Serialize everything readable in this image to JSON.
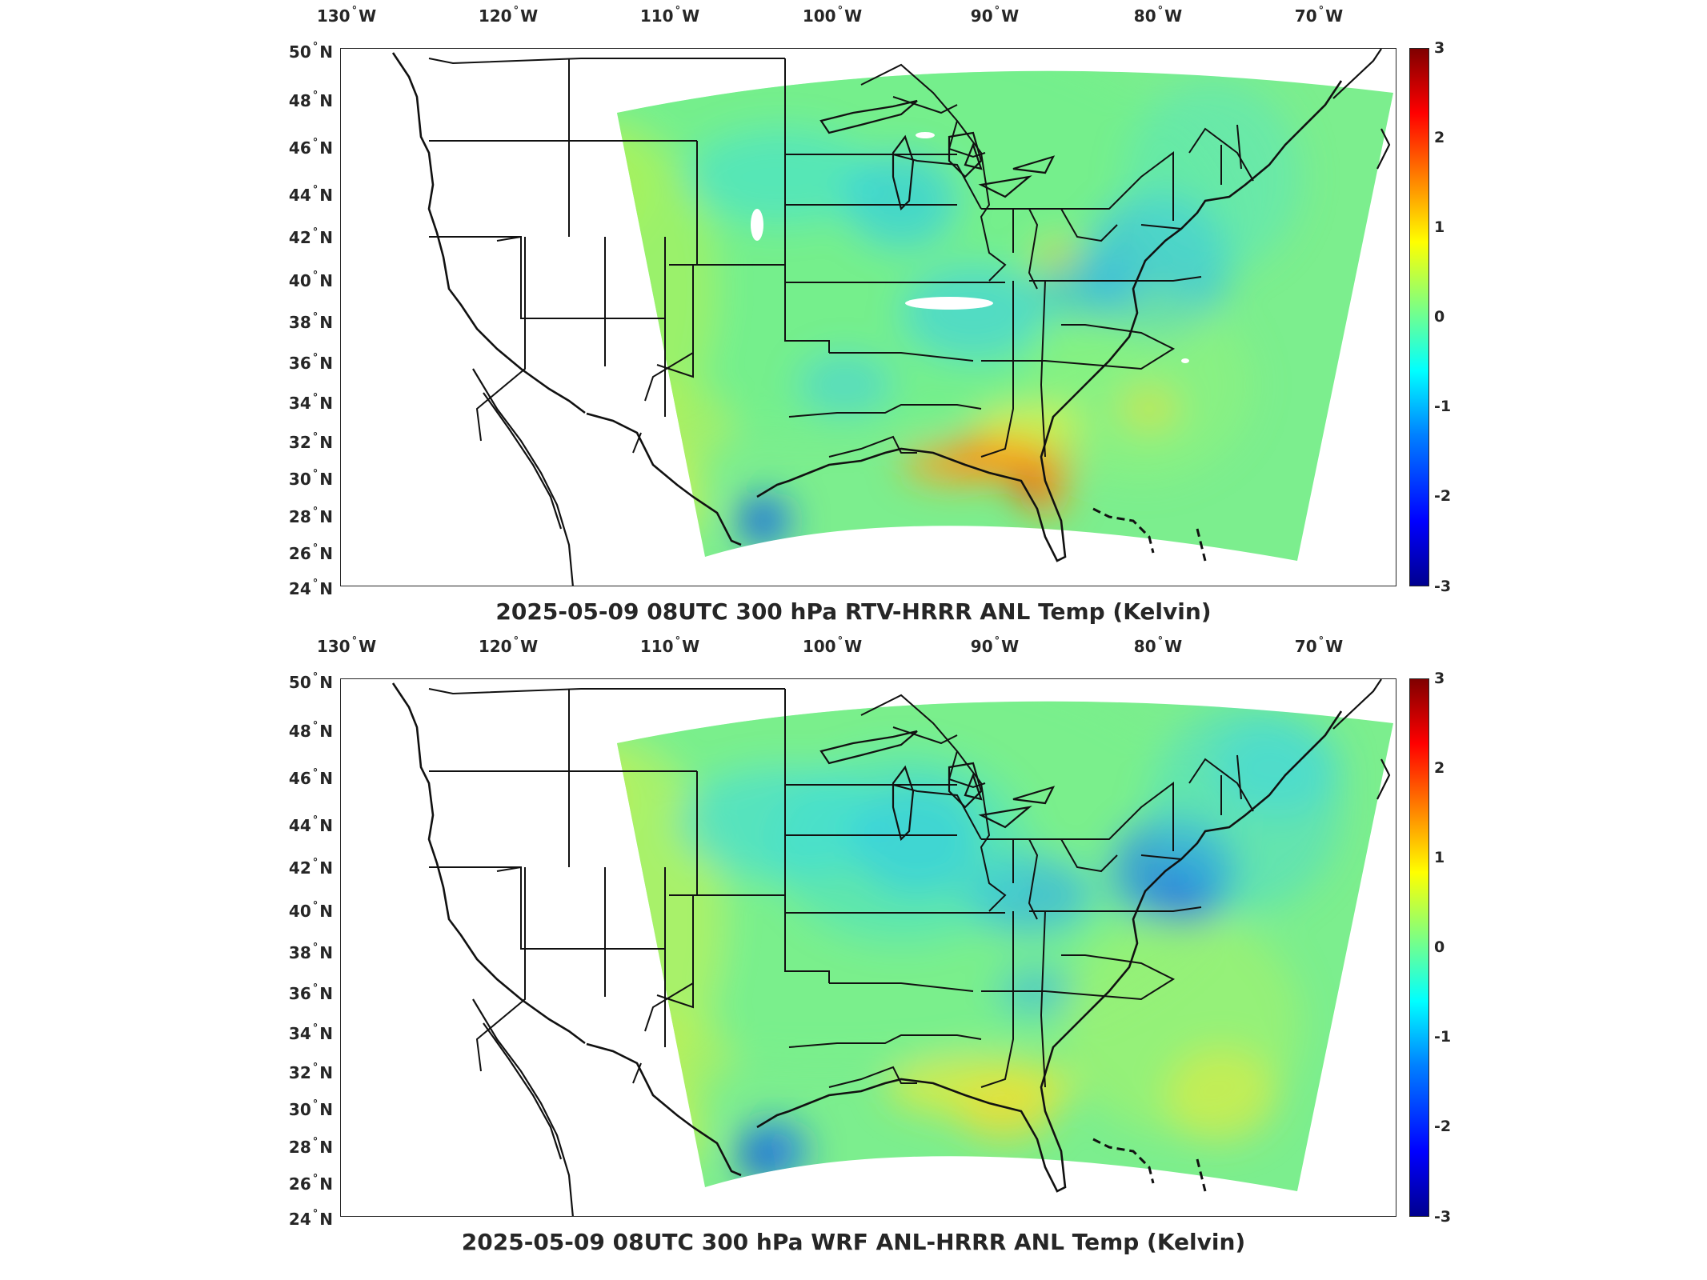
{
  "lon_labels": [
    {
      "deg": "130",
      "hemi": "W"
    },
    {
      "deg": "120",
      "hemi": "W"
    },
    {
      "deg": "110",
      "hemi": "W"
    },
    {
      "deg": "100",
      "hemi": "W"
    },
    {
      "deg": "90",
      "hemi": "W"
    },
    {
      "deg": "80",
      "hemi": "W"
    },
    {
      "deg": "70",
      "hemi": "W"
    }
  ],
  "lat_labels": [
    {
      "deg": "50",
      "hemi": "N"
    },
    {
      "deg": "48",
      "hemi": "N"
    },
    {
      "deg": "46",
      "hemi": "N"
    },
    {
      "deg": "44",
      "hemi": "N"
    },
    {
      "deg": "42",
      "hemi": "N"
    },
    {
      "deg": "40",
      "hemi": "N"
    },
    {
      "deg": "38",
      "hemi": "N"
    },
    {
      "deg": "36",
      "hemi": "N"
    },
    {
      "deg": "34",
      "hemi": "N"
    },
    {
      "deg": "32",
      "hemi": "N"
    },
    {
      "deg": "30",
      "hemi": "N"
    },
    {
      "deg": "28",
      "hemi": "N"
    },
    {
      "deg": "26",
      "hemi": "N"
    },
    {
      "deg": "24",
      "hemi": "N"
    }
  ],
  "colorbar": {
    "ticks": [
      "3",
      "2",
      "1",
      "0",
      "-1",
      "-2",
      "-3"
    ],
    "range": [
      -3,
      3
    ],
    "colormap": "jet"
  },
  "panels": [
    {
      "title": "2025-05-09 08UTC 300 hPa RTV-HRRR ANL Temp (Kelvin)"
    },
    {
      "title": "2025-05-09 08UTC 300 hPa WRF ANL-HRRR ANL Temp (Kelvin)"
    }
  ]
}
